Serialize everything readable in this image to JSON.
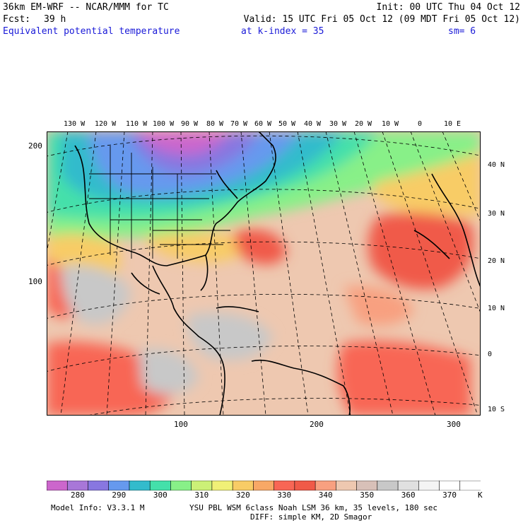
{
  "header": {
    "model_title": "36km EM-WRF -- NCAR/MMM for TC",
    "init": "Init: 00 UTC Thu 04 Oct 12",
    "fcst_label": "Fcst:",
    "fcst_value": "39 h",
    "valid": "Valid: 15 UTC Fri 05 Oct 12 (09 MDT Fri 05 Oct 12)",
    "field": "Equivalent potential temperature",
    "level": "at k-index =  35",
    "smoothing": "sm= 6"
  },
  "map": {
    "lon_labels": [
      "130 W",
      "120 W",
      "110 W",
      "100 W",
      "90 W",
      "80 W",
      "70 W",
      "60 W",
      "50 W",
      "40 W",
      "30 W",
      "20 W",
      "10 W",
      "0",
      "10 E"
    ],
    "lat_labels": [
      "40 N",
      "30 N",
      "20 N",
      "10 N",
      "0",
      "10 S"
    ],
    "grid_y_labels": [
      "200",
      "100"
    ],
    "grid_x_labels": [
      "100",
      "200",
      "300"
    ]
  },
  "colorbar": {
    "unit": "K",
    "tick_labels": [
      "280",
      "290",
      "300",
      "310",
      "320",
      "330",
      "340",
      "350",
      "360",
      "370"
    ],
    "colors": [
      "#cc66cc",
      "#a877d8",
      "#8877e0",
      "#6699ee",
      "#33bbcc",
      "#44e0aa",
      "#88f088",
      "#ccf077",
      "#f0f077",
      "#f8cc66",
      "#f8a866",
      "#f86655",
      "#f05a48",
      "#f8a080",
      "#eec8b0",
      "#d8c0b8",
      "#c8c8c8",
      "#e0e0e0",
      "#f4f4f4",
      "#ffffff",
      "#ffffff"
    ]
  },
  "footer": {
    "model_info": "Model Info: V3.3.1 M",
    "physics": "YSU PBL  WSM 6class  Noah LSM  36 km,   35 levels,  180 sec",
    "diffusion": "DIFF: simple KM, 2D Smagor"
  }
}
